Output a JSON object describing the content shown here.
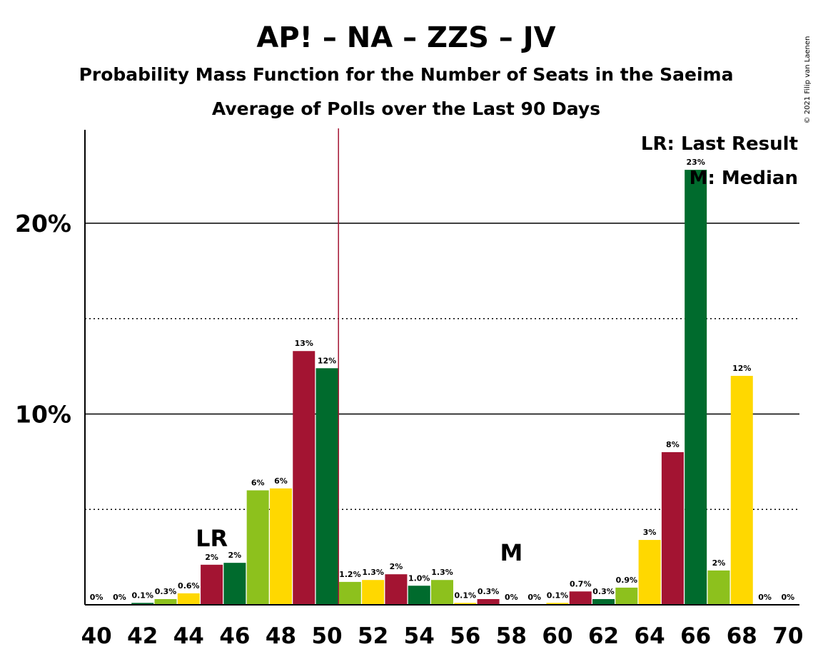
{
  "chart_data": {
    "type": "bar",
    "title": "AP! – NA – ZZS – JV",
    "subtitle_1": "Probability Mass Function for the Number of Seats in the Saeima",
    "subtitle_2": "Average of Polls over the Last 90 Days",
    "credit": "© 2021 Filip van Laenen",
    "x": [
      40,
      41,
      42,
      43,
      44,
      45,
      46,
      47,
      48,
      49,
      50,
      51,
      52,
      53,
      54,
      55,
      56,
      57,
      58,
      59,
      60,
      61,
      62,
      63,
      64,
      65,
      66,
      67,
      68,
      69,
      70
    ],
    "values": [
      0,
      0,
      0.1,
      0.3,
      0.6,
      2.1,
      2.2,
      6.0,
      6.1,
      13.3,
      12.4,
      1.2,
      1.3,
      1.6,
      1.0,
      1.3,
      0.1,
      0.3,
      0,
      0,
      0.1,
      0.7,
      0.3,
      0.9,
      3.4,
      8.0,
      22.8,
      1.8,
      12.0,
      0,
      0
    ],
    "value_labels": [
      "0%",
      "0%",
      "0.1%",
      "0.3%",
      "0.6%",
      "2%",
      "2%",
      "6%",
      "6%",
      "13%",
      "12%",
      "1.2%",
      "1.3%",
      "2%",
      "1.0%",
      "1.3%",
      "0.1%",
      "0.3%",
      "0%",
      "0%",
      "0.1%",
      "0.7%",
      "0.3%",
      "0.9%",
      "3%",
      "8%",
      "23%",
      "2%",
      "12%",
      "0%",
      "0%"
    ],
    "xtick_labels": [
      "40",
      "42",
      "44",
      "46",
      "48",
      "50",
      "52",
      "54",
      "56",
      "58",
      "60",
      "62",
      "64",
      "66",
      "68",
      "70"
    ],
    "ytick_labels": [
      "10%",
      "20%"
    ],
    "yticks": [
      10,
      20
    ],
    "ylim": [
      0,
      25
    ],
    "xlim": [
      39.5,
      70.5
    ],
    "grid_major": [
      10,
      20
    ],
    "grid_minor": [
      5,
      15
    ],
    "majority_line_at": 50.5,
    "last_result": {
      "seat": 45,
      "label": "LR"
    },
    "median": {
      "seat": 58,
      "label": "M"
    },
    "legend": [
      "LR: Last Result",
      "M: Median"
    ],
    "legend_placement": "top-right",
    "bar_colors": [
      "#a31432",
      "#006b2d",
      "#8dc11d",
      "#ffd800"
    ],
    "majority_line_color": "#a31432"
  }
}
